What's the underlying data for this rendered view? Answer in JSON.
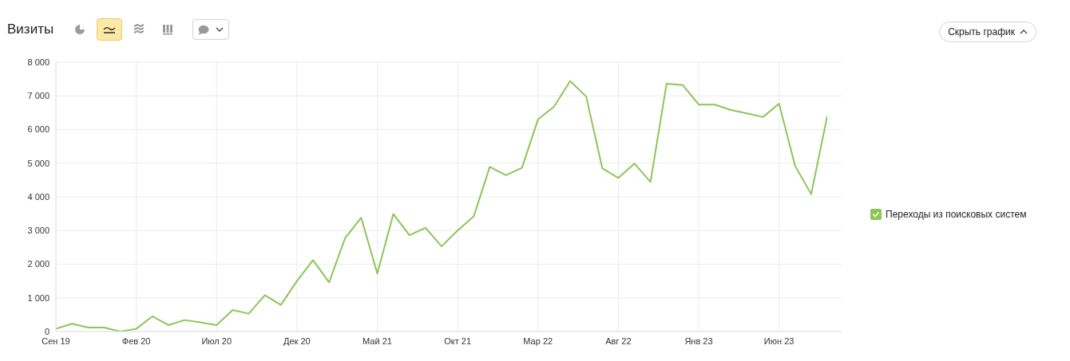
{
  "chart_data": {
    "type": "line",
    "title": "Визиты",
    "categories": [
      "Сен 19",
      null,
      null,
      null,
      null,
      "Фев 20",
      null,
      null,
      null,
      null,
      "Июл 20",
      null,
      null,
      null,
      null,
      "Дек 20",
      null,
      null,
      null,
      null,
      "Май 21",
      null,
      null,
      null,
      null,
      "Окт 21",
      null,
      null,
      null,
      null,
      "Мар 22",
      null,
      null,
      null,
      null,
      "Авг 22",
      null,
      null,
      null,
      null,
      "Янв 23",
      null,
      null,
      null,
      null,
      "Июн 23",
      null,
      null,
      null
    ],
    "series": [
      {
        "name": "Переходы из поисковых систем",
        "color": "#8cc657",
        "values": [
          80,
          230,
          120,
          120,
          0,
          80,
          450,
          190,
          340,
          270,
          190,
          640,
          530,
          1080,
          790,
          1500,
          2120,
          1460,
          2780,
          3380,
          1720,
          3490,
          2860,
          3080,
          2530,
          3000,
          3420,
          4890,
          4640,
          4860,
          6300,
          6680,
          7440,
          6980,
          4850,
          4560,
          4990,
          4440,
          7360,
          7320,
          6740,
          6740,
          6580,
          6480,
          6370,
          6770,
          4920,
          4080,
          6400
        ]
      }
    ],
    "ylim": [
      0,
      8000
    ],
    "yticks": [
      {
        "value": 0,
        "label": "0"
      },
      {
        "value": 1000,
        "label": "1 000"
      },
      {
        "value": 2000,
        "label": "2 000"
      },
      {
        "value": 3000,
        "label": "3 000"
      },
      {
        "value": 4000,
        "label": "4 000"
      },
      {
        "value": 5000,
        "label": "5 000"
      },
      {
        "value": 6000,
        "label": "6 000"
      },
      {
        "value": 7000,
        "label": "7 000"
      },
      {
        "value": 8000,
        "label": "8 000"
      }
    ],
    "grid": true,
    "legend": "right",
    "marker": "none",
    "line_style": "solid",
    "annotations": [
      "Скрыть график"
    ]
  }
}
